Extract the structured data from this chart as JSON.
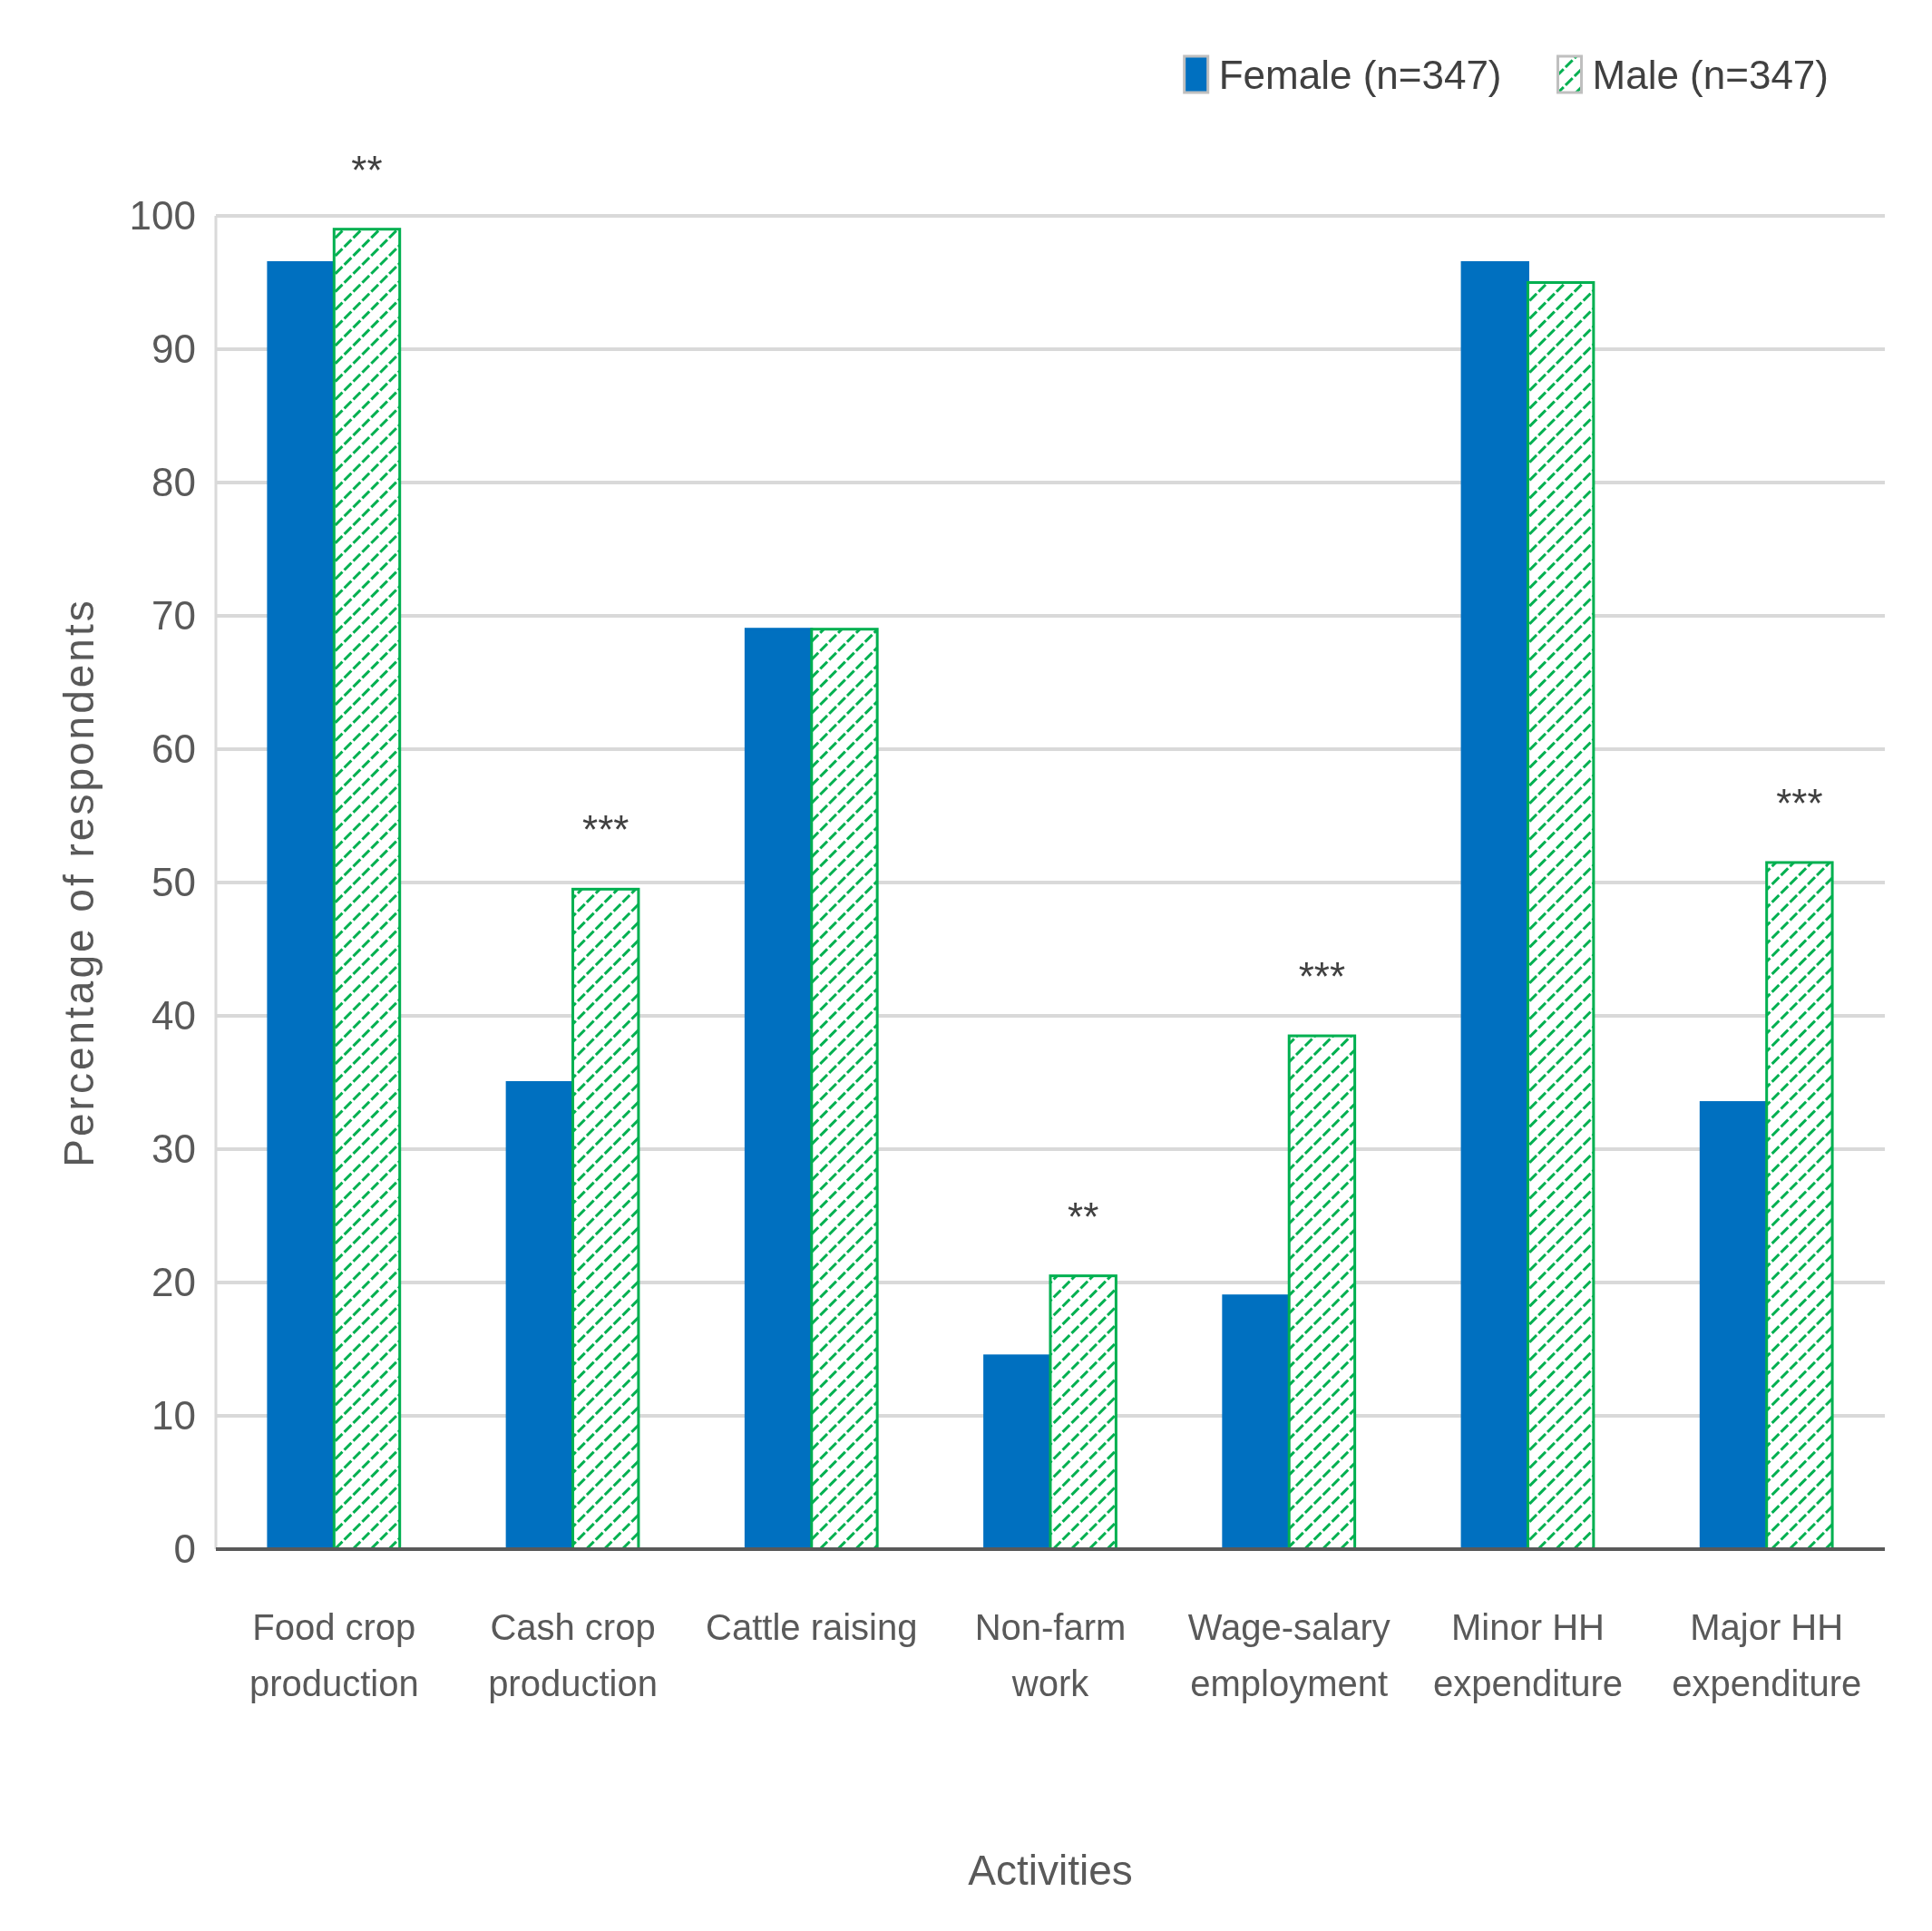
{
  "chart_data": {
    "type": "bar",
    "xlabel": "Activities",
    "ylabel": "Percentage of respondents",
    "categories": [
      "Food crop production",
      "Cash crop production",
      "Cattle raising",
      "Non-farm work",
      "Wage-salary employment",
      "Minor HH expenditure",
      "Major HH expenditure"
    ],
    "series": [
      {
        "name": "Female (n=347)",
        "color": "#0070c0",
        "values": [
          96.5,
          35,
          69,
          14.5,
          19,
          96.5,
          33.5
        ]
      },
      {
        "name": "Male (n=347)",
        "color": "#00b050",
        "values": [
          99,
          49.5,
          69,
          20.5,
          38.5,
          95,
          51.5
        ]
      }
    ],
    "ylim": [
      0,
      100
    ],
    "yticks": [
      0,
      10,
      20,
      30,
      40,
      50,
      60,
      70,
      80,
      90,
      100
    ],
    "grid": "y",
    "legend": "top right",
    "annotations": [
      {
        "text": "**",
        "x": "Food crop production",
        "y": 99
      },
      {
        "text": "***",
        "x": "Cash crop production",
        "y": 49.5
      },
      {
        "text": "**",
        "x": "Non-farm work",
        "y": 20.5
      },
      {
        "text": "***",
        "x": "Wage-salary employment",
        "y": 38.5
      },
      {
        "text": "***",
        "x": "Major HH expenditure",
        "y": 51.5
      }
    ]
  }
}
